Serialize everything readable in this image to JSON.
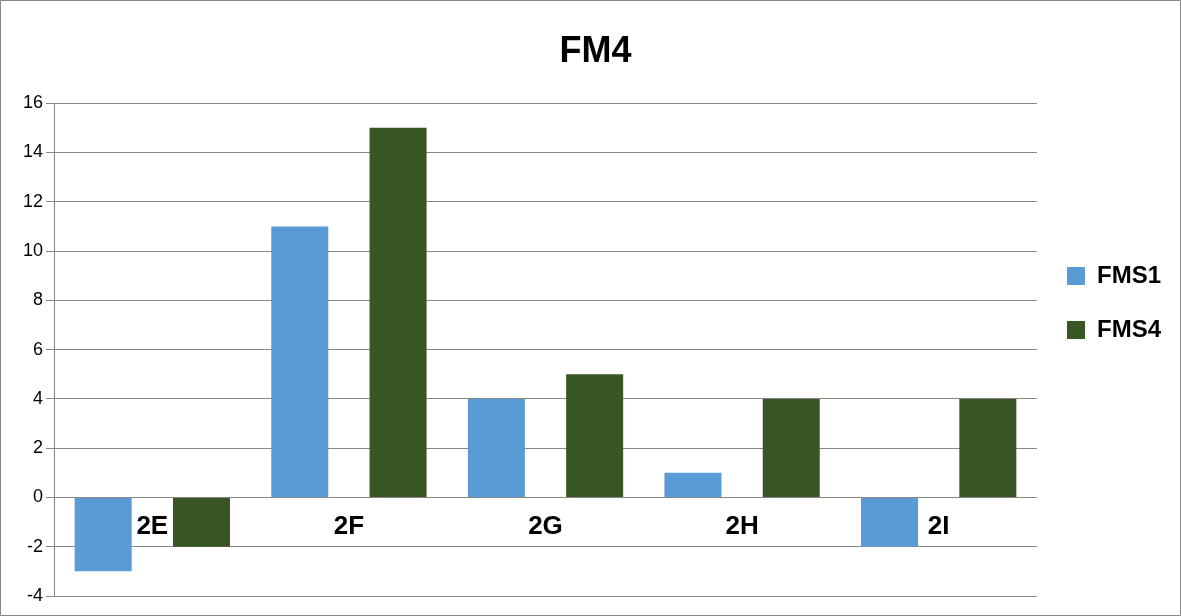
{
  "chart_data": {
    "type": "bar",
    "title": "FM4",
    "categories": [
      "2E",
      "2F",
      "2G",
      "2H",
      "2I"
    ],
    "series": [
      {
        "name": "FMS1",
        "color": "#5b9bd5",
        "values": [
          -3,
          11,
          4,
          1,
          -2
        ]
      },
      {
        "name": "FMS4",
        "color": "#375623",
        "values": [
          -2,
          15,
          5,
          4,
          4
        ]
      }
    ],
    "ylim": [
      -4,
      16
    ],
    "yticks": [
      -4,
      -2,
      0,
      2,
      4,
      6,
      8,
      10,
      12,
      14,
      16
    ],
    "grid": "y",
    "legend": "right"
  }
}
